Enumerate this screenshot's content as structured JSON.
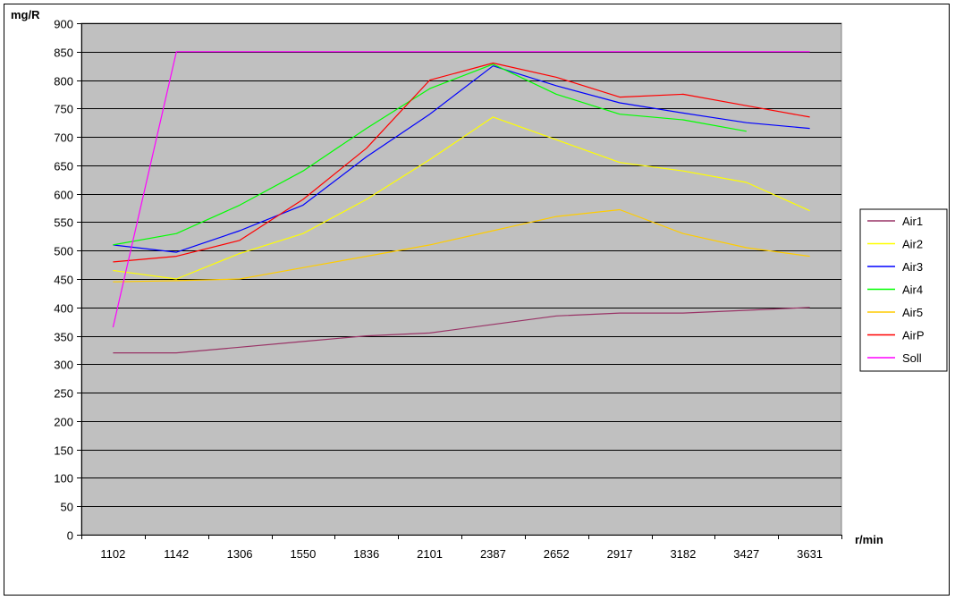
{
  "chart_data": {
    "type": "line",
    "title": "",
    "xlabel": "r/min",
    "ylabel": "mg/R",
    "categories": [
      "1102",
      "1142",
      "1306",
      "1550",
      "1836",
      "2101",
      "2387",
      "2652",
      "2917",
      "3182",
      "3427",
      "3631"
    ],
    "ylim": [
      0,
      900
    ],
    "yticks": [
      0,
      50,
      100,
      150,
      200,
      250,
      300,
      350,
      400,
      450,
      500,
      550,
      600,
      650,
      700,
      750,
      800,
      850,
      900
    ],
    "grid": true,
    "legend_position": "right",
    "colors": {
      "plot_background": "#c0c0c0",
      "gridline": "#000000"
    },
    "series": [
      {
        "name": "Air1",
        "color": "#993366",
        "values": [
          320,
          320,
          330,
          340,
          350,
          355,
          370,
          385,
          390,
          390,
          395,
          400
        ]
      },
      {
        "name": "Air2",
        "color": "#ffff00",
        "values": [
          465,
          450,
          495,
          530,
          590,
          660,
          735,
          695,
          655,
          640,
          620,
          570
        ]
      },
      {
        "name": "Air3",
        "color": "#0000ff",
        "values": [
          510,
          497,
          535,
          580,
          665,
          740,
          825,
          790,
          760,
          742,
          725,
          715
        ]
      },
      {
        "name": "Air4",
        "color": "#00ff00",
        "values": [
          510,
          530,
          580,
          640,
          715,
          785,
          828,
          775,
          740,
          730,
          710,
          null
        ]
      },
      {
        "name": "Air5",
        "color": "#ffcc00",
        "values": [
          445,
          447,
          450,
          470,
          490,
          510,
          535,
          560,
          572,
          530,
          505,
          490
        ]
      },
      {
        "name": "AirP",
        "color": "#ff0000",
        "values": [
          480,
          490,
          518,
          590,
          680,
          800,
          830,
          805,
          770,
          775,
          755,
          735
        ]
      },
      {
        "name": "Soll",
        "color": "#ff00ff",
        "values": [
          365,
          850,
          850,
          850,
          850,
          850,
          850,
          850,
          850,
          850,
          850,
          850
        ]
      }
    ]
  }
}
